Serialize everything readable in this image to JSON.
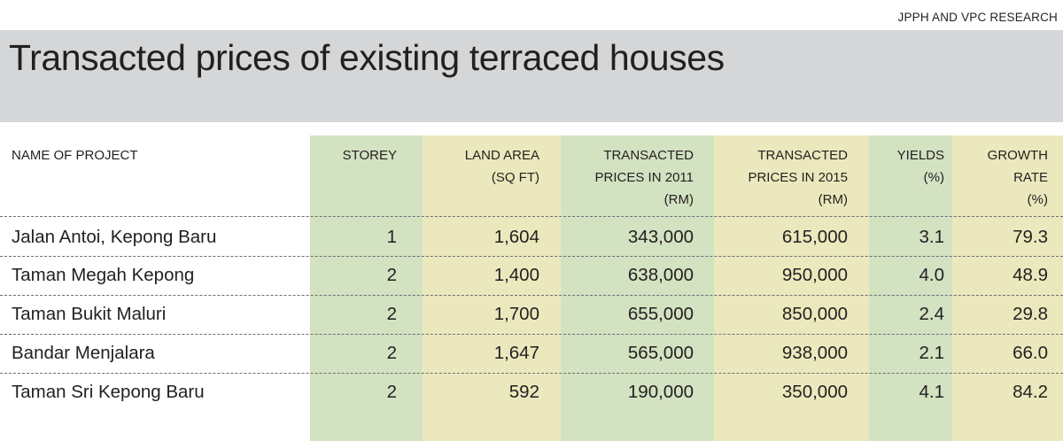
{
  "source": "JPPH AND VPC RESEARCH",
  "title": "Transacted prices of existing terraced houses",
  "colors": {
    "title_band": "#d5d6d7",
    "green_column": "#d3e2c1",
    "yellow_column": "#ebe8bd",
    "text": "#231f20"
  },
  "headers": {
    "name": "NAME OF PROJECT",
    "storey": "STOREY",
    "land_area": "LAND AREA\n(SQ FT)",
    "price_2011": "TRANSACTED\nPRICES IN 2011\n(RM)",
    "price_2015": "TRANSACTED\nPRICES IN 2015\n(RM)",
    "yields": "YIELDS\n(%)",
    "growth": "GROWTH\nRATE\n(%)"
  },
  "chart_data": {
    "type": "table",
    "title": "Transacted prices of existing terraced houses",
    "columns": [
      "NAME OF PROJECT",
      "STOREY",
      "LAND AREA (SQ FT)",
      "TRANSACTED PRICES IN 2011 (RM)",
      "TRANSACTED PRICES IN 2015 (RM)",
      "YIELDS (%)",
      "GROWTH RATE (%)"
    ],
    "rows": [
      {
        "name": "Jalan Antoi, Kepong Baru",
        "storey": "1",
        "land_area": "1,604",
        "price_2011": "343,000",
        "price_2015": "615,000",
        "yields": "3.1",
        "growth": "79.3"
      },
      {
        "name": "Taman Megah Kepong",
        "storey": "2",
        "land_area": "1,400",
        "price_2011": "638,000",
        "price_2015": "950,000",
        "yields": "4.0",
        "growth": "48.9"
      },
      {
        "name": "Taman Bukit Maluri",
        "storey": "2",
        "land_area": "1,700",
        "price_2011": "655,000",
        "price_2015": "850,000",
        "yields": "2.4",
        "growth": "29.8"
      },
      {
        "name": "Bandar Menjalara",
        "storey": "2",
        "land_area": "1,647",
        "price_2011": "565,000",
        "price_2015": "938,000",
        "yields": "2.1",
        "growth": "66.0"
      },
      {
        "name": "Taman Sri Kepong Baru",
        "storey": "2",
        "land_area": "592",
        "price_2011": "190,000",
        "price_2015": "350,000",
        "yields": "4.1",
        "growth": "84.2"
      }
    ]
  }
}
